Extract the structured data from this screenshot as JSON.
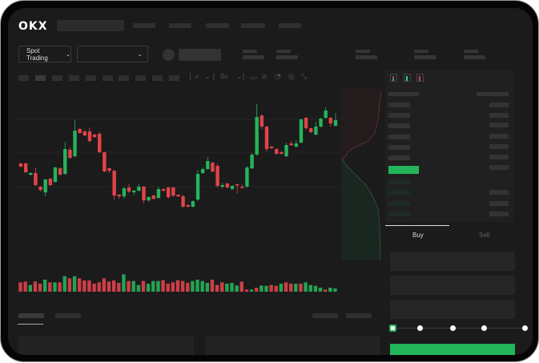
{
  "header": {
    "logo": "OKX",
    "trading_mode": "Spot Trading",
    "pair_selector_value": ""
  },
  "order_panel": {
    "buy_tab": "Buy",
    "sell_tab": "Sell",
    "leverage_steps": 5,
    "leverage_selected": 0
  },
  "colors": {
    "up": "#27b35a",
    "down": "#e2434a",
    "buy_button": "#22b55a",
    "background": "#1b1b1c"
  },
  "icons": [
    "chart-type-icon",
    "indicator-icon",
    "drawing-line-icon",
    "ruler-icon",
    "camera-icon",
    "settings-circle-icon",
    "fullscreen-icon",
    "orderbook-both-icon",
    "orderbook-bids-icon",
    "orderbook-asks-icon"
  ],
  "chart_data": {
    "type": "candlestick",
    "candles": [
      [
        97,
        93,
        98,
        92
      ],
      [
        97,
        86,
        98,
        85
      ],
      [
        83,
        85,
        86,
        82
      ],
      [
        85,
        70,
        92,
        69
      ],
      [
        68,
        64,
        69,
        62
      ],
      [
        61,
        77,
        78,
        56
      ],
      [
        78,
        70,
        79,
        69
      ],
      [
        74,
        92,
        93,
        73
      ],
      [
        91,
        83,
        92,
        82
      ],
      [
        84,
        115,
        124,
        83
      ],
      [
        114,
        104,
        117,
        103
      ],
      [
        106,
        138,
        152,
        105
      ],
      [
        140,
        135,
        141,
        134
      ],
      [
        137,
        132,
        139,
        131
      ],
      [
        137,
        125,
        142,
        123
      ],
      [
        133,
        130,
        134,
        129
      ],
      [
        134,
        111,
        136,
        110
      ],
      [
        111,
        87,
        112,
        86
      ],
      [
        91,
        88,
        92,
        85
      ],
      [
        88,
        57,
        89,
        52
      ],
      [
        58,
        56,
        59,
        53
      ],
      [
        56,
        66,
        68,
        53
      ],
      [
        67,
        62,
        71,
        60
      ],
      [
        61,
        63,
        64,
        57
      ],
      [
        63,
        68,
        71,
        62
      ],
      [
        68,
        51,
        69,
        47
      ],
      [
        51,
        55,
        56,
        49
      ],
      [
        57,
        53,
        58,
        51
      ],
      [
        54,
        65,
        68,
        53
      ],
      [
        65,
        63,
        66,
        62
      ],
      [
        67,
        55,
        68,
        53
      ],
      [
        67,
        57,
        68,
        55
      ],
      [
        58,
        56,
        58,
        55
      ],
      [
        56,
        43,
        58,
        42
      ],
      [
        45,
        43,
        46,
        42
      ],
      [
        43,
        50,
        51,
        42
      ],
      [
        52,
        84,
        89,
        50
      ],
      [
        85,
        90,
        92,
        84
      ],
      [
        90,
        100,
        105,
        89
      ],
      [
        98,
        87,
        99,
        86
      ],
      [
        94,
        69,
        97,
        67
      ],
      [
        68,
        70,
        73,
        66
      ],
      [
        72,
        67,
        73,
        66
      ],
      [
        65,
        69,
        70,
        64
      ],
      [
        71,
        70,
        72,
        60
      ],
      [
        68,
        67,
        71,
        66
      ],
      [
        68,
        92,
        94,
        67
      ],
      [
        91,
        108,
        110,
        90
      ],
      [
        108,
        155,
        171,
        107
      ],
      [
        157,
        143,
        158,
        140
      ],
      [
        143,
        115,
        144,
        112
      ],
      [
        118,
        116,
        119,
        115
      ],
      [
        115,
        109,
        116,
        108
      ],
      [
        111,
        109,
        113,
        108
      ],
      [
        106,
        120,
        123,
        105
      ],
      [
        122,
        120,
        125,
        119
      ],
      [
        118,
        122,
        126,
        117
      ],
      [
        123,
        152,
        153,
        122
      ],
      [
        154,
        141,
        155,
        139
      ],
      [
        141,
        136,
        142,
        135
      ],
      [
        133,
        143,
        149,
        132
      ],
      [
        143,
        153,
        154,
        142
      ],
      [
        154,
        163,
        167,
        153
      ],
      [
        154,
        147,
        155,
        143
      ],
      [
        144,
        151,
        160,
        143
      ]
    ],
    "volume": [
      35,
      38,
      25,
      38,
      30,
      45,
      35,
      35,
      35,
      58,
      50,
      58,
      50,
      42,
      42,
      30,
      35,
      50,
      38,
      42,
      33,
      65,
      40,
      40,
      25,
      40,
      30,
      40,
      40,
      43,
      30,
      35,
      43,
      40,
      33,
      40,
      45,
      40,
      33,
      45,
      25,
      35,
      30,
      33,
      23,
      38,
      8,
      8,
      15,
      23,
      22,
      25,
      22,
      30,
      35,
      30,
      30,
      30,
      35,
      25,
      22,
      15,
      8,
      15,
      12
    ],
    "volume_colors": "rrgrrgrgrgrgrrrrrrrrrgrggrgggrrrrrrggggrrrgggrrgrggrrgrrgrggggrgg"
  }
}
